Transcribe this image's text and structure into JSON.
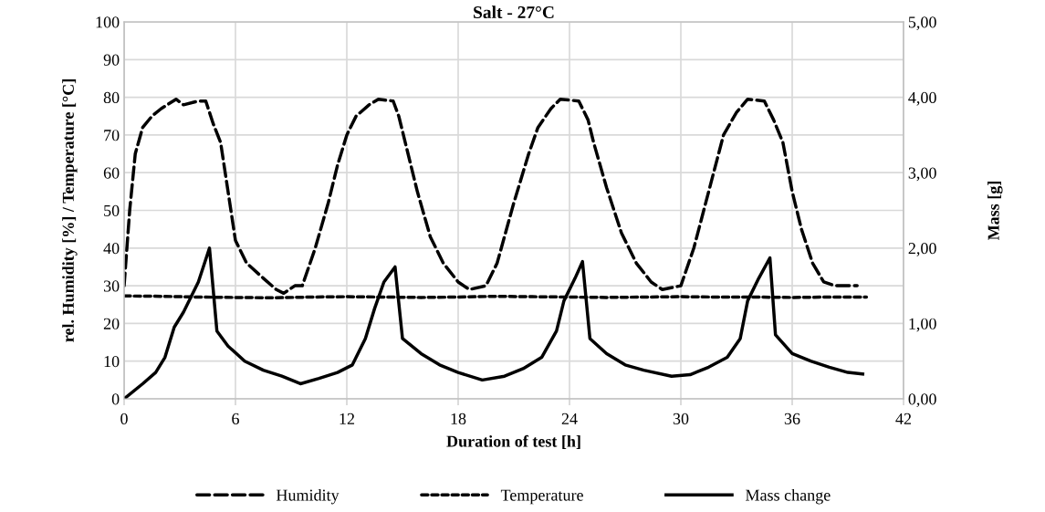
{
  "chart_data": {
    "type": "line",
    "title": "Salt - 27°C",
    "xlabel": "Duration of test [h]",
    "ylabel": "rel. Humidity [%] / Temperature [°C]",
    "y2label": "Mass [g]",
    "xlim": [
      0,
      42
    ],
    "xticks": [
      0,
      6,
      12,
      18,
      24,
      30,
      36,
      42
    ],
    "ylim": [
      0,
      100
    ],
    "yticks": [
      0,
      10,
      20,
      30,
      40,
      50,
      60,
      70,
      80,
      90,
      100
    ],
    "y2lim": [
      0,
      5
    ],
    "y2ticks": [
      {
        "value": 0,
        "label": "0,00"
      },
      {
        "value": 1,
        "label": "1,00"
      },
      {
        "value": 2,
        "label": "2,00"
      },
      {
        "value": 3,
        "label": "3,00"
      },
      {
        "value": 4,
        "label": "4,00"
      },
      {
        "value": 5,
        "label": "5,00"
      }
    ],
    "grid": true,
    "legend": "bottom",
    "marker": "none",
    "series": [
      {
        "name": "Humidity",
        "color": "#000000",
        "line_style": "dashed",
        "x": [
          0,
          0.3,
          0.6,
          1,
          1.5,
          2,
          2.8,
          3.2,
          4,
          4.4,
          4.8,
          5.2,
          5.6,
          6,
          6.6,
          7.5,
          8.2,
          8.6,
          9.2,
          9.6,
          10.3,
          11,
          11.5,
          12,
          12.5,
          13.2,
          13.7,
          14.5,
          14.8,
          15.2,
          15.8,
          16.5,
          17.2,
          18,
          18.6,
          19.5,
          20.1,
          21,
          21.8,
          22.3,
          23,
          23.5,
          24.5,
          25,
          25.3,
          26,
          26.8,
          27.6,
          28.4,
          29,
          30,
          30.7,
          31.5,
          32.3,
          33,
          33.6,
          34.5,
          35,
          35.5,
          36,
          36.5,
          37.1,
          37.7,
          38.3,
          39.5
        ],
        "values": [
          30,
          50,
          65,
          72,
          75,
          77,
          79.5,
          78,
          79,
          79,
          73,
          68,
          55,
          42,
          36,
          32,
          29,
          28,
          30,
          30,
          40,
          52,
          62,
          70,
          75,
          78,
          79.5,
          79,
          75,
          67,
          55,
          43,
          36,
          31,
          29,
          30,
          36,
          52,
          65,
          72,
          77,
          79.5,
          79,
          74,
          68,
          56,
          44,
          36,
          31,
          29,
          30,
          40,
          55,
          70,
          76,
          79.5,
          79,
          74,
          68,
          55,
          45,
          36,
          31,
          30,
          30
        ]
      },
      {
        "name": "Temperature",
        "color": "#000000",
        "line_style": "dotted",
        "x": [
          0,
          2,
          4,
          6,
          8,
          10,
          12,
          14,
          16,
          18,
          20,
          22,
          24,
          26,
          28,
          30,
          32,
          34,
          36,
          38,
          40
        ],
        "values": [
          27.3,
          27.2,
          27,
          26.9,
          26.8,
          27,
          27.1,
          27,
          26.9,
          27,
          27.2,
          27.1,
          27,
          26.9,
          27,
          27.1,
          27,
          27,
          26.9,
          27,
          27
        ]
      },
      {
        "name": "Mass change",
        "color": "#000000",
        "line_style": "solid",
        "axis": "y2",
        "x": [
          0,
          1,
          1.7,
          2.2,
          2.7,
          3.2,
          4,
          4.6,
          5,
          5.6,
          6.5,
          7.5,
          8.5,
          9.5,
          10.5,
          11.5,
          12.3,
          13,
          13.5,
          14,
          14.6,
          15,
          16,
          17,
          18,
          19.3,
          20.5,
          21.5,
          22.5,
          23.3,
          23.7,
          24.3,
          24.7,
          25.1,
          26,
          27,
          28,
          29.5,
          30.5,
          31.5,
          32.5,
          33.2,
          33.6,
          34.2,
          34.8,
          35.1,
          36,
          37,
          38,
          39,
          39.8
        ],
        "values": [
          0,
          0.2,
          0.35,
          0.55,
          0.95,
          1.15,
          1.55,
          2.0,
          0.9,
          0.7,
          0.5,
          0.38,
          0.3,
          0.2,
          0.27,
          0.35,
          0.45,
          0.8,
          1.2,
          1.55,
          1.75,
          0.8,
          0.6,
          0.45,
          0.35,
          0.25,
          0.3,
          0.4,
          0.55,
          0.9,
          1.3,
          1.6,
          1.82,
          0.8,
          0.6,
          0.45,
          0.38,
          0.3,
          0.32,
          0.42,
          0.55,
          0.8,
          1.3,
          1.6,
          1.87,
          0.85,
          0.6,
          0.5,
          0.42,
          0.35,
          0.33
        ]
      }
    ]
  }
}
